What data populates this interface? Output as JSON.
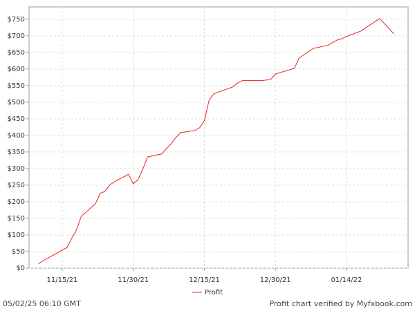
{
  "chart_data": {
    "type": "line",
    "x": [
      "11/10/21",
      "11/11/21",
      "11/16/21",
      "11/17/21",
      "11/18/21",
      "11/19/21",
      "11/22/21",
      "11/23/21",
      "11/24/21",
      "11/25/21",
      "11/26/21",
      "11/29/21",
      "11/30/21",
      "12/01/21",
      "12/02/21",
      "12/03/21",
      "12/06/21",
      "12/07/21",
      "12/08/21",
      "12/09/21",
      "12/10/21",
      "12/13/21",
      "12/14/21",
      "12/15/21",
      "12/16/21",
      "12/17/21",
      "12/21/21",
      "12/22/21",
      "12/23/21",
      "12/27/21",
      "12/29/21",
      "12/30/21",
      "01/03/22",
      "01/04/22",
      "01/07/22",
      "01/10/22",
      "01/12/22",
      "01/13/22",
      "01/14/22",
      "01/17/22",
      "01/19/22",
      "01/21/22",
      "01/24/22"
    ],
    "series": [
      {
        "name": "Profit",
        "color": "#e8231f",
        "values": [
          13,
          23,
          62,
          90,
          115,
          156,
          194,
          225,
          231,
          250,
          260,
          283,
          254,
          267,
          298,
          335,
          344,
          360,
          375,
          394,
          408,
          415,
          423,
          444,
          506,
          525,
          546,
          558,
          565,
          565,
          568,
          585,
          602,
          633,
          662,
          671,
          687,
          691,
          698,
          714,
          733,
          752,
          706
        ]
      }
    ],
    "xlim": [
      "11/08/21",
      "01/27/22"
    ],
    "xticks": [
      "11/15/21",
      "11/30/21",
      "12/15/21",
      "12/30/21",
      "01/14/22"
    ],
    "ylim": [
      0,
      787
    ],
    "yticks": [
      {
        "value": 0,
        "label": "$0"
      },
      {
        "value": 50,
        "label": "$50"
      },
      {
        "value": 100,
        "label": "$100"
      },
      {
        "value": 150,
        "label": "$150"
      },
      {
        "value": 200,
        "label": "$200"
      },
      {
        "value": 250,
        "label": "$250"
      },
      {
        "value": 300,
        "label": "$300"
      },
      {
        "value": 350,
        "label": "$350"
      },
      {
        "value": 400,
        "label": "$400"
      },
      {
        "value": 450,
        "label": "$450"
      },
      {
        "value": 500,
        "label": "$500"
      },
      {
        "value": 550,
        "label": "$550"
      },
      {
        "value": 600,
        "label": "$600"
      },
      {
        "value": 650,
        "label": "$650"
      },
      {
        "value": 700,
        "label": "$700"
      },
      {
        "value": 750,
        "label": "$750"
      }
    ],
    "grid": true,
    "legend": "bottom",
    "timestamp": "05/02/25 06:10 GMT",
    "credit": "Profit chart verified by Myfxbook.com"
  }
}
